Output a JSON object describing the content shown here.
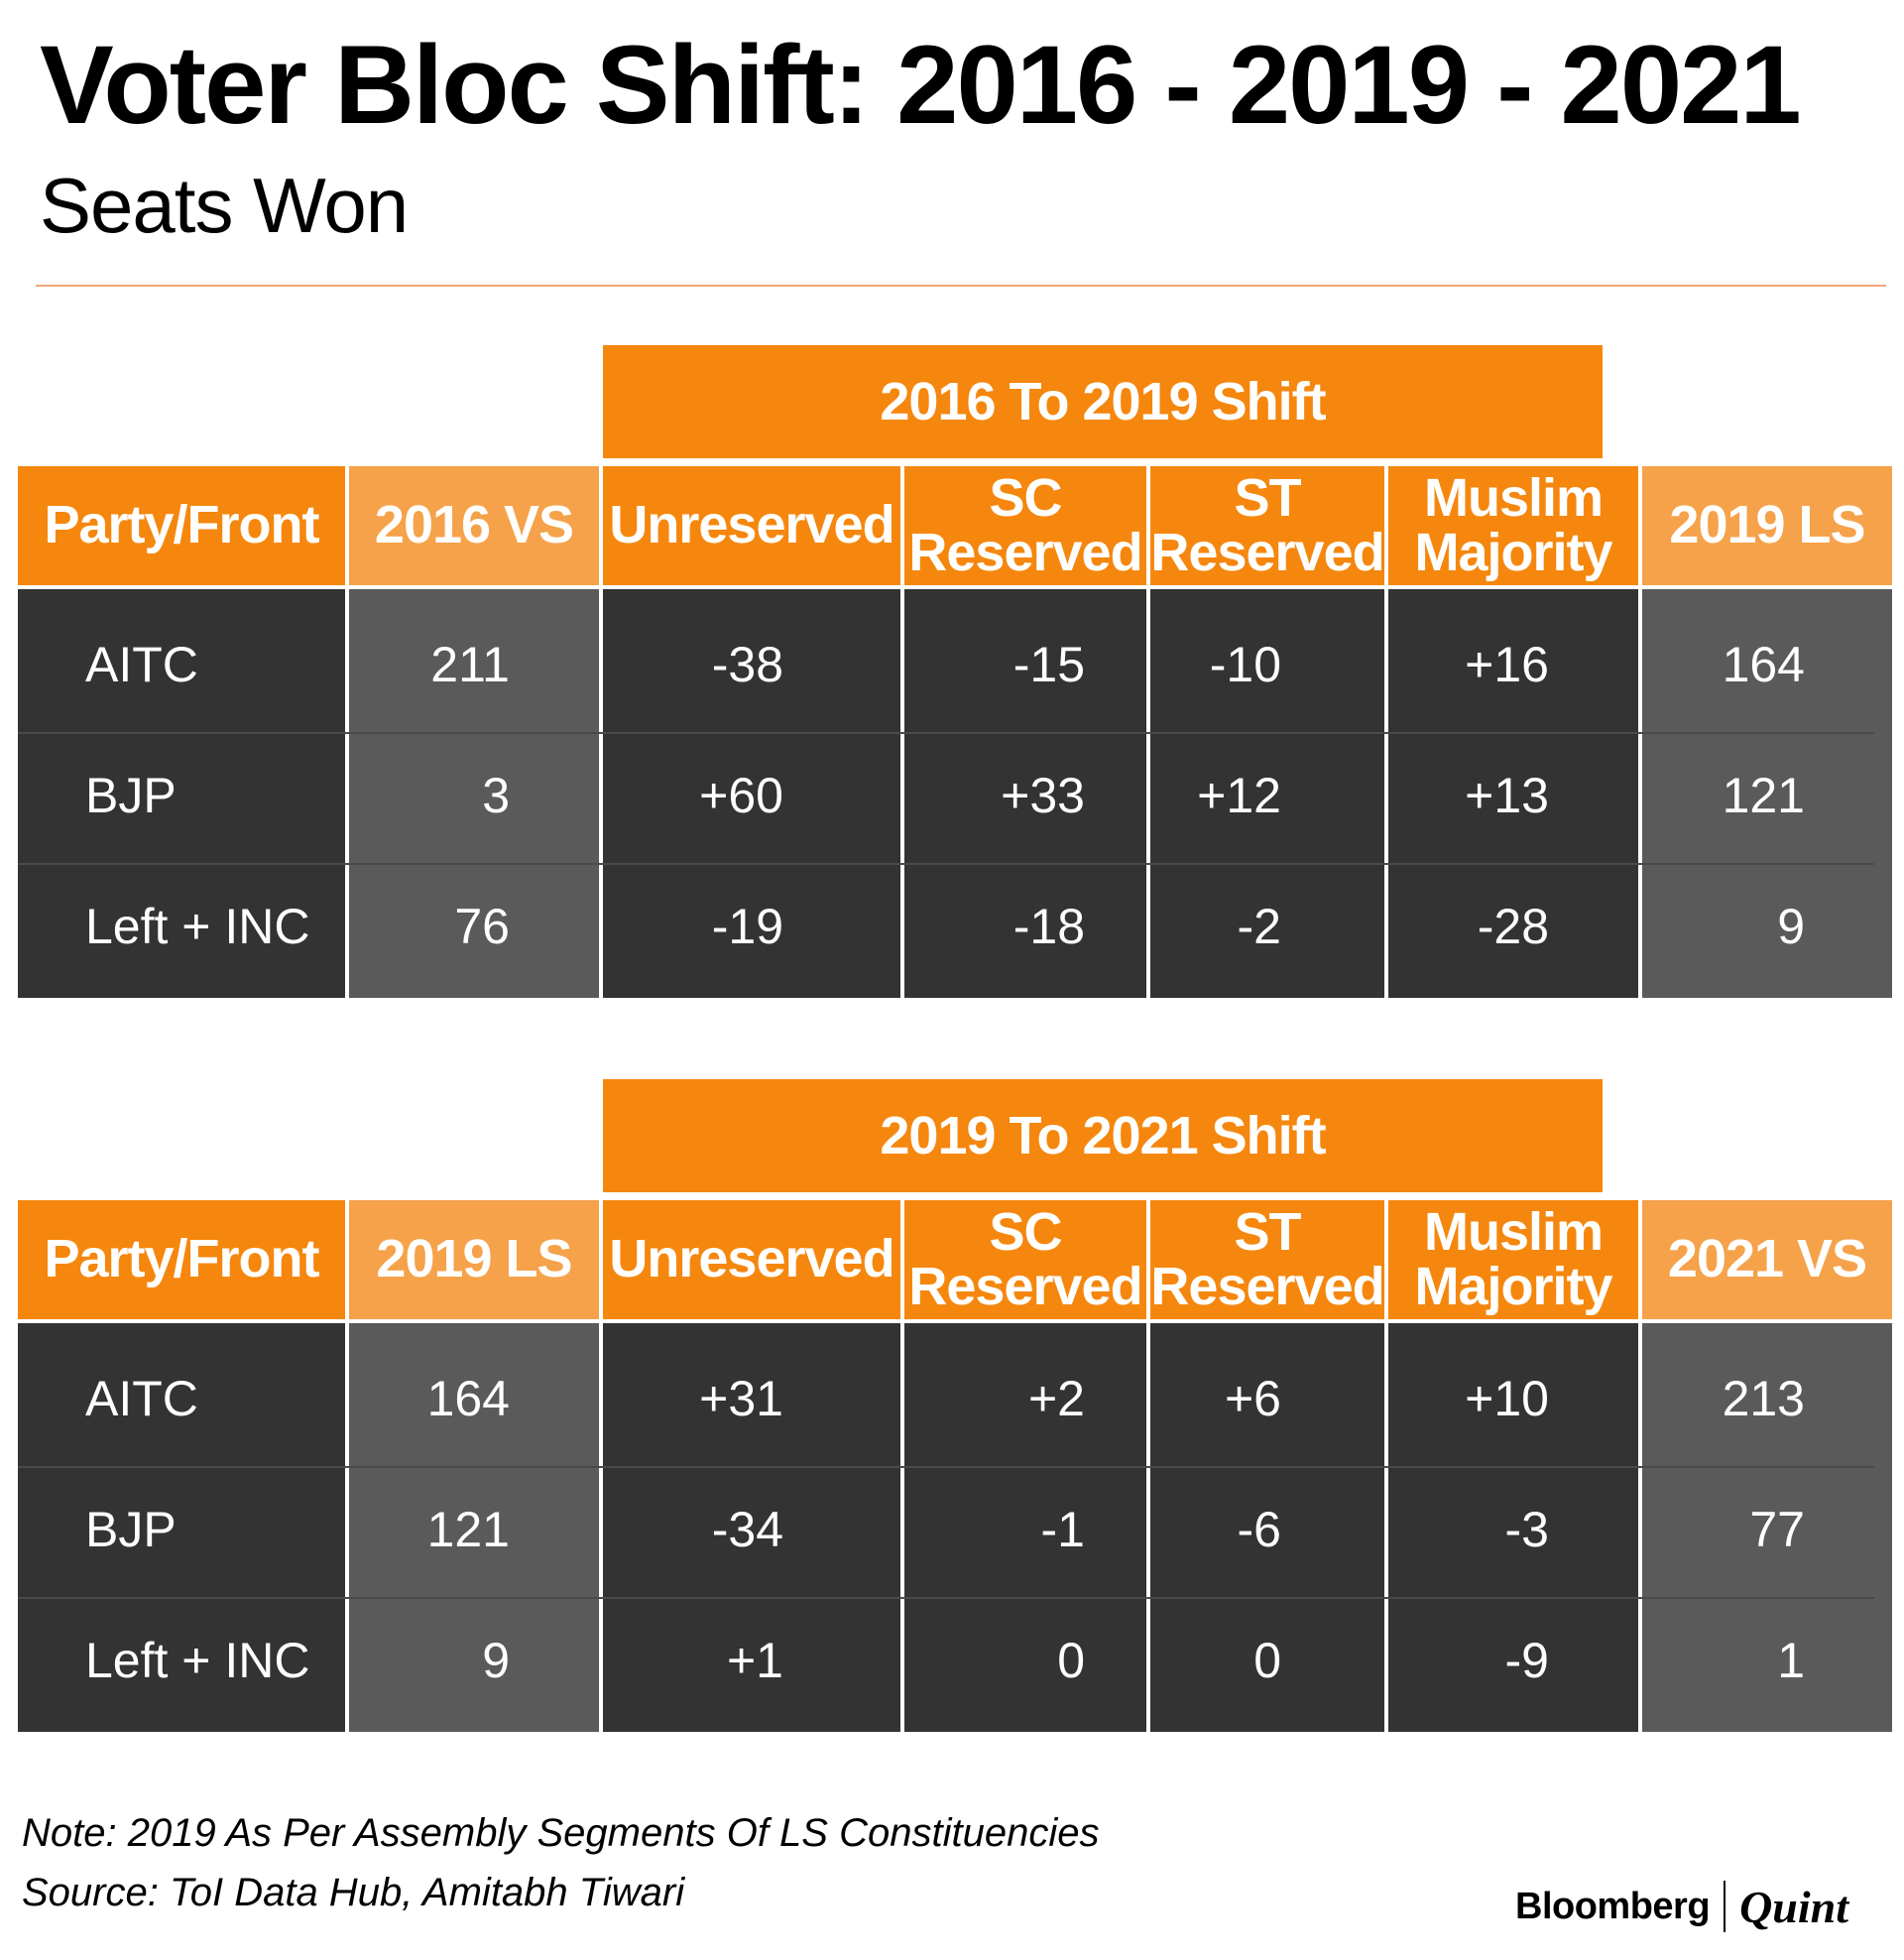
{
  "title": "Voter Bloc Shift: 2016 - 2019 - 2021",
  "subtitle": "Seats Won",
  "chart_data": [
    {
      "type": "table",
      "title": "2016 To 2019 Shift",
      "columns": [
        "Party/Front",
        "2016 VS",
        "Unreserved",
        "SC Reserved",
        "ST Reserved",
        "Muslim Majority",
        "2019 LS"
      ],
      "rows": [
        [
          "AITC",
          "211",
          "-38",
          "-15",
          "-10",
          "+16",
          "164"
        ],
        [
          "BJP",
          "3",
          "+60",
          "+33",
          "+12",
          "+13",
          "121"
        ],
        [
          "Left + INC",
          "76",
          "-19",
          "-18",
          "-2",
          "-28",
          "9"
        ]
      ]
    },
    {
      "type": "table",
      "title": "2019 To 2021 Shift",
      "columns": [
        "Party/Front",
        "2019 LS",
        "Unreserved",
        "SC Reserved",
        "ST Reserved",
        "Muslim Majority",
        "2021 VS"
      ],
      "rows": [
        [
          "AITC",
          "164",
          "+31",
          "+2",
          "+6",
          "+10",
          "213"
        ],
        [
          "BJP",
          "121",
          "-34",
          "-1",
          "-6",
          "-3",
          "77"
        ],
        [
          "Left + INC",
          "9",
          "+1",
          "0",
          "0",
          "-9",
          "1"
        ]
      ]
    }
  ],
  "footer": {
    "note": "Note: 2019 As Per Assembly Segments Of LS Constituencies",
    "source": "Source: ToI Data Hub, Amitabh Tiwari",
    "brand": "Bloomberg",
    "brand_partner": "Quint"
  },
  "colors": {
    "header_dark": "#f5870e",
    "header_light": "#f5a24a",
    "body_dark": "#333333",
    "body_light": "#5a5a5a"
  }
}
